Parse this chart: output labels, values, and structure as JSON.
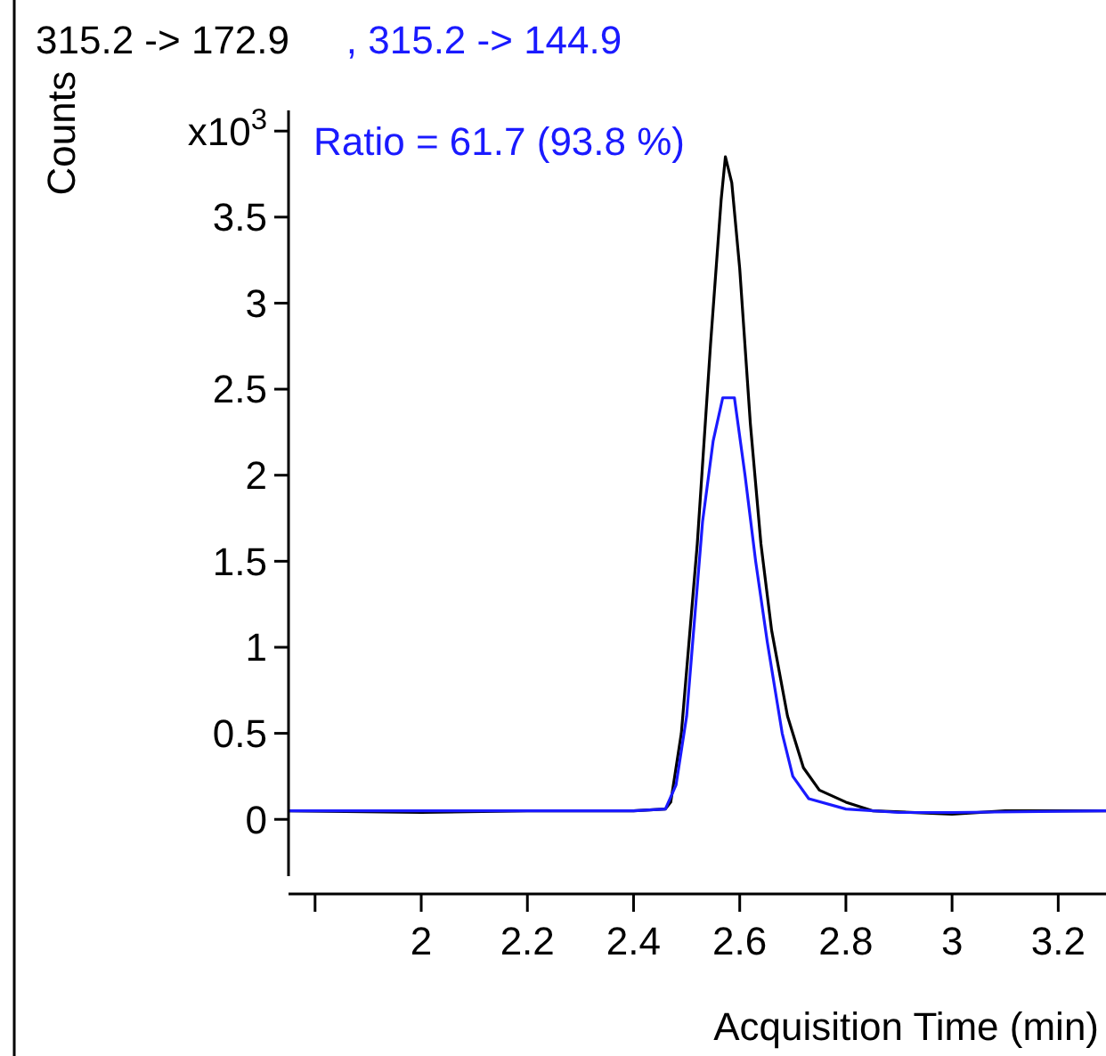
{
  "chart_data": {
    "type": "line",
    "xlabel": "Acquisition Time (min)",
    "ylabel": "Counts",
    "annotations": [
      "Ratio = 61.7 (93.8 %)"
    ],
    "xlim": [
      1.75,
      3.29
    ],
    "xticks": [
      {
        "value": 1.8,
        "label": null
      },
      2,
      2.2,
      2.4,
      2.6,
      2.8,
      3,
      3.2
    ],
    "ylim": [
      -0.33,
      4.12
    ],
    "yticks": [
      0,
      0.5,
      1,
      1.5,
      2,
      2.5,
      3,
      3.5,
      {
        "value": 4,
        "label": "x10$^{3}$"
      }
    ],
    "grid": false,
    "legend": "top",
    "marker": "none",
    "line_style": "solid",
    "series": [
      {
        "name": "315.2 -> 172.9",
        "color": "#000000",
        "x": [
          1.75,
          2.0,
          2.2,
          2.4,
          2.46,
          2.47,
          2.49,
          2.52,
          2.545,
          2.565,
          2.573,
          2.585,
          2.6,
          2.62,
          2.64,
          2.66,
          2.69,
          2.72,
          2.75,
          2.8,
          2.85,
          3.0,
          3.1,
          3.29
        ],
        "values": [
          0.05,
          0.04,
          0.05,
          0.05,
          0.06,
          0.1,
          0.5,
          1.6,
          2.76,
          3.6,
          3.85,
          3.7,
          3.2,
          2.3,
          1.6,
          1.1,
          0.6,
          0.3,
          0.17,
          0.1,
          0.05,
          0.03,
          0.05,
          0.05
        ]
      },
      {
        "name": ", 315.2 -> 144.9",
        "color": "#1a1aff",
        "x": [
          1.75,
          2.0,
          2.2,
          2.4,
          2.46,
          2.48,
          2.5,
          2.53,
          2.55,
          2.568,
          2.59,
          2.61,
          2.63,
          2.652,
          2.68,
          2.7,
          2.73,
          2.8,
          2.9,
          3.0,
          3.29
        ],
        "values": [
          0.05,
          0.05,
          0.05,
          0.05,
          0.06,
          0.2,
          0.6,
          1.73,
          2.2,
          2.45,
          2.45,
          2.0,
          1.5,
          1.03,
          0.5,
          0.25,
          0.12,
          0.06,
          0.04,
          0.04,
          0.05
        ]
      }
    ]
  }
}
